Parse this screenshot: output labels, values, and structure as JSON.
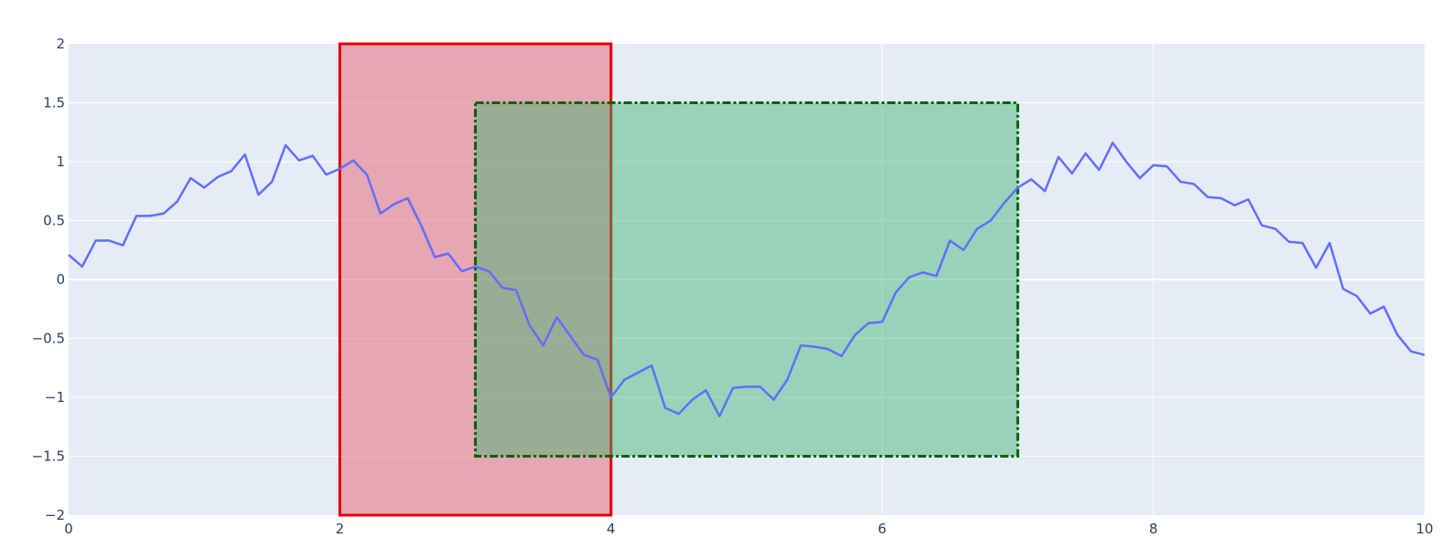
{
  "chart_data": {
    "type": "line",
    "title": "",
    "xlabel": "",
    "ylabel": "",
    "xlim": [
      0,
      10
    ],
    "ylim": [
      -2,
      2
    ],
    "x_ticks": [
      0,
      2,
      4,
      6,
      8,
      10
    ],
    "x_tick_labels": [
      "0",
      "2",
      "4",
      "6",
      "8",
      "10"
    ],
    "y_ticks": [
      2,
      1.5,
      1,
      0.5,
      0,
      -0.5,
      -1,
      -1.5,
      -2
    ],
    "y_tick_labels": [
      "2",
      "1.5",
      "1",
      "0.5",
      "0",
      "−0.5",
      "−1",
      "−1.5",
      "−2"
    ],
    "grid": true,
    "plot_background": "#E5ECF6",
    "series": [
      {
        "color": "#636EFA",
        "x": [
          0,
          0.1,
          0.2,
          0.3,
          0.4,
          0.5,
          0.6,
          0.7,
          0.8,
          0.9,
          1.0,
          1.1,
          1.2,
          1.3,
          1.4,
          1.5,
          1.6,
          1.7,
          1.8,
          1.9,
          2.0,
          2.1,
          2.2,
          2.3,
          2.4,
          2.5,
          2.6,
          2.7,
          2.8,
          2.9,
          3.0,
          3.1,
          3.2,
          3.3,
          3.4,
          3.5,
          3.6,
          3.7,
          3.8,
          3.9,
          4.0,
          4.1,
          4.2,
          4.3,
          4.4,
          4.5,
          4.6,
          4.7,
          4.8,
          4.9,
          5.0,
          5.1,
          5.2,
          5.3,
          5.4,
          5.5,
          5.6,
          5.7,
          5.8,
          5.9,
          6.0,
          6.1,
          6.2,
          6.3,
          6.4,
          6.5,
          6.6,
          6.7,
          6.8,
          6.9,
          7.0,
          7.1,
          7.2,
          7.3,
          7.4,
          7.5,
          7.6,
          7.7,
          7.8,
          7.9,
          8.0,
          8.1,
          8.2,
          8.3,
          8.4,
          8.5,
          8.6,
          8.7,
          8.8,
          8.9,
          9.0,
          9.1,
          9.2,
          9.3,
          9.4,
          9.5,
          9.6,
          9.7,
          9.8,
          9.9,
          10.0
        ],
        "y": [
          0.21,
          0.11,
          0.33,
          0.33,
          0.29,
          0.54,
          0.54,
          0.56,
          0.66,
          0.86,
          0.78,
          0.87,
          0.92,
          1.06,
          0.72,
          0.83,
          1.14,
          1.01,
          1.05,
          0.89,
          0.94,
          1.01,
          0.89,
          0.56,
          0.64,
          0.69,
          0.46,
          0.19,
          0.22,
          0.07,
          0.11,
          0.07,
          -0.07,
          -0.09,
          -0.39,
          -0.56,
          -0.32,
          -0.48,
          -0.64,
          -0.68,
          -1.0,
          -0.85,
          -0.79,
          -0.73,
          -1.09,
          -1.14,
          -1.02,
          -0.94,
          -1.16,
          -0.92,
          -0.91,
          -0.91,
          -1.02,
          -0.85,
          -0.56,
          -0.57,
          -0.59,
          -0.65,
          -0.47,
          -0.37,
          -0.36,
          -0.11,
          0.02,
          0.06,
          0.03,
          0.33,
          0.25,
          0.43,
          0.5,
          0.65,
          0.78,
          0.85,
          0.75,
          1.04,
          0.9,
          1.07,
          0.93,
          1.16,
          1.0,
          0.86,
          0.97,
          0.96,
          0.83,
          0.81,
          0.7,
          0.69,
          0.63,
          0.68,
          0.46,
          0.43,
          0.32,
          0.31,
          0.1,
          0.31,
          -0.08,
          -0.14,
          -0.29,
          -0.23,
          -0.47,
          -0.61,
          -0.64
        ]
      }
    ],
    "shapes": [
      {
        "type": "rect",
        "x0": 2,
        "x1": 4,
        "y0": -2,
        "y1": 2,
        "line_color": "#E50000",
        "line_dash": "solid",
        "fill_color": "#E8606F",
        "fill_opacity": 0.5
      },
      {
        "type": "rect",
        "x0": 3,
        "x1": 7,
        "y0": -1.5,
        "y1": 1.5,
        "line_color": "#006400",
        "line_dash": "dashdot",
        "fill_color": "#3CB371",
        "fill_opacity": 0.45
      }
    ]
  }
}
